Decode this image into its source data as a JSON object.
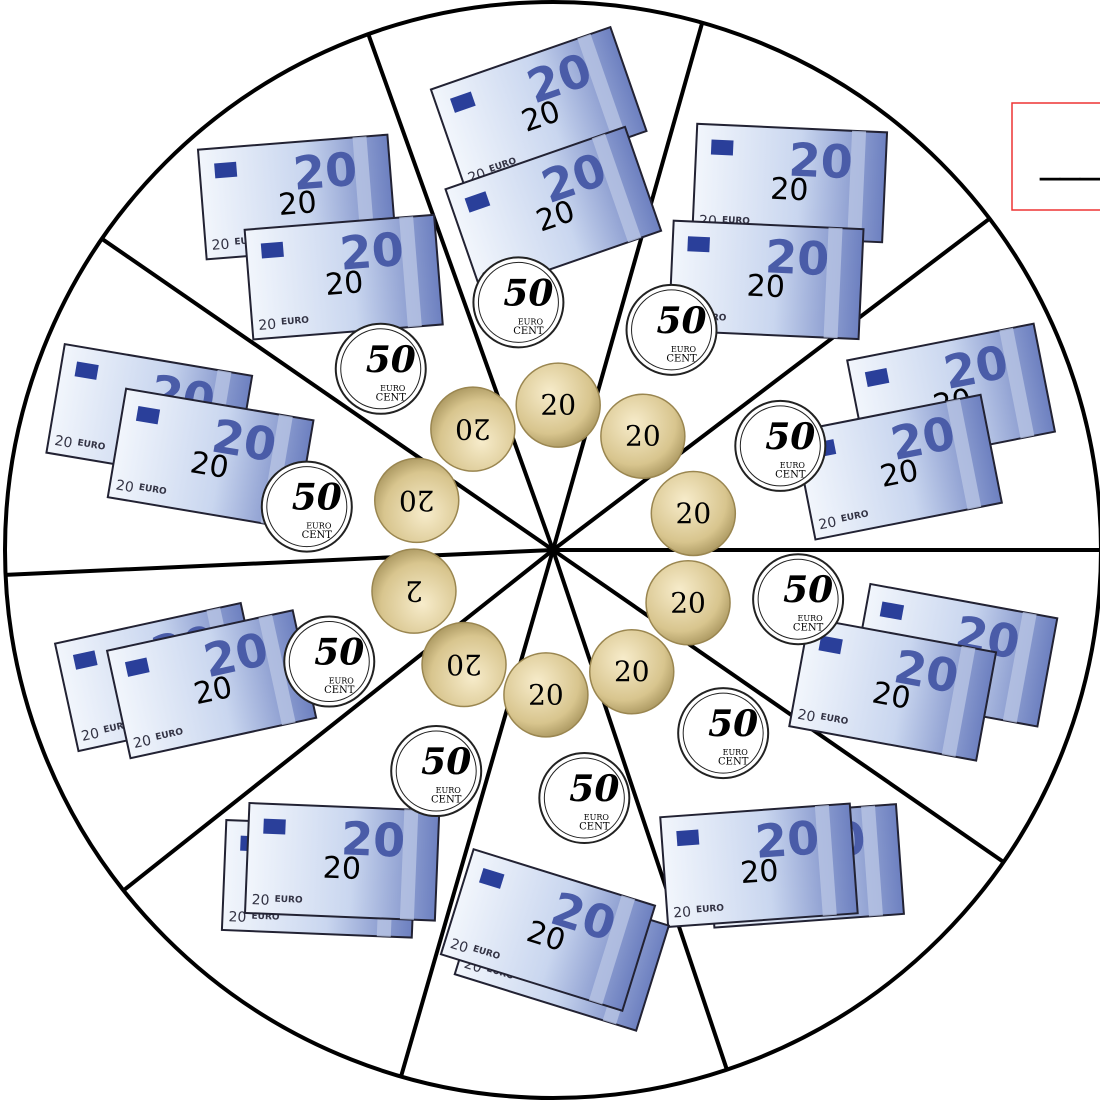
{
  "answer_box": {
    "text": "___"
  },
  "sectors": [
    {
      "notes": [
        {
          "denomination": "20",
          "currency": "EURO",
          "overlay": "20"
        },
        {
          "denomination": "20",
          "currency": "EURO",
          "overlay": "20"
        }
      ],
      "coin50": {
        "value": "50",
        "unit_top": "EURO",
        "unit_bottom": "CENT"
      },
      "coin20": {
        "value": "20"
      }
    },
    {
      "notes": [
        {
          "denomination": "20",
          "currency": "EURO",
          "overlay": "20"
        },
        {
          "denomination": "20",
          "currency": "EURO",
          "overlay": "20"
        }
      ],
      "coin50": {
        "value": "50",
        "unit_top": "EURO",
        "unit_bottom": "CENT"
      },
      "coin20": {
        "value": "20"
      }
    },
    {
      "notes": [
        {
          "denomination": "20",
          "currency": "EURO",
          "overlay": "20"
        },
        {
          "denomination": "20",
          "currency": "EURO",
          "overlay": "20"
        }
      ],
      "coin50": {
        "value": "50",
        "unit_top": "EURO",
        "unit_bottom": "CENT"
      },
      "coin20": {
        "value": "20"
      }
    },
    {
      "notes": [
        {
          "denomination": "20",
          "currency": "EURO",
          "overlay": "20"
        },
        {
          "denomination": "20",
          "currency": "EURO",
          "overlay": "20"
        }
      ],
      "coin50": {
        "value": "50",
        "unit_top": "EURO",
        "unit_bottom": "CENT"
      },
      "coin20": {
        "value": "20"
      }
    },
    {
      "notes": [
        {
          "denomination": "20",
          "currency": "EURO",
          "overlay": "20"
        },
        {
          "denomination": "20",
          "currency": "EURO",
          "overlay": "20"
        }
      ],
      "coin50": {
        "value": "50",
        "unit_top": "EURO",
        "unit_bottom": "CENT"
      },
      "coin20": {
        "value": "20"
      }
    },
    {
      "notes": [
        {
          "denomination": "20",
          "currency": "EURO",
          "overlay": "20"
        },
        {
          "denomination": "20",
          "currency": "EURO",
          "overlay": "20"
        }
      ],
      "coin50": {
        "value": "50",
        "unit_top": "EURO",
        "unit_bottom": "CENT"
      },
      "coin20": {
        "value": "20"
      }
    },
    {
      "notes": [
        {
          "denomination": "20",
          "currency": "EURO",
          "overlay": "20"
        },
        {
          "denomination": "20",
          "currency": "EURO",
          "overlay": "20"
        }
      ],
      "coin50": {
        "value": "50",
        "unit_top": "EURO",
        "unit_bottom": "CENT"
      },
      "coin20": {
        "value": "20"
      }
    },
    {
      "notes": [
        {
          "denomination": "20",
          "currency": "EURO",
          "overlay": "20"
        },
        {
          "denomination": "20",
          "currency": "EURO",
          "overlay": "20"
        }
      ],
      "coin50": {
        "value": "50",
        "unit_top": "EURO",
        "unit_bottom": "CENT"
      },
      "coin20": {
        "value": "2"
      }
    },
    {
      "notes": [
        {
          "denomination": "20",
          "currency": "EURO",
          "overlay": "20"
        },
        {
          "denomination": "20",
          "currency": "EURO",
          "overlay": "20"
        }
      ],
      "coin50": {
        "value": "50",
        "unit_top": "EURO",
        "unit_bottom": "CENT"
      },
      "coin20": {
        "value": "20"
      }
    },
    {
      "notes": [
        {
          "denomination": "20",
          "currency": "EURO",
          "overlay": "20"
        },
        {
          "denomination": "20",
          "currency": "EURO",
          "overlay": "20"
        }
      ],
      "coin50": {
        "value": "50",
        "unit_top": "EURO",
        "unit_bottom": "CENT"
      },
      "coin20": {
        "value": "20"
      }
    }
  ]
}
